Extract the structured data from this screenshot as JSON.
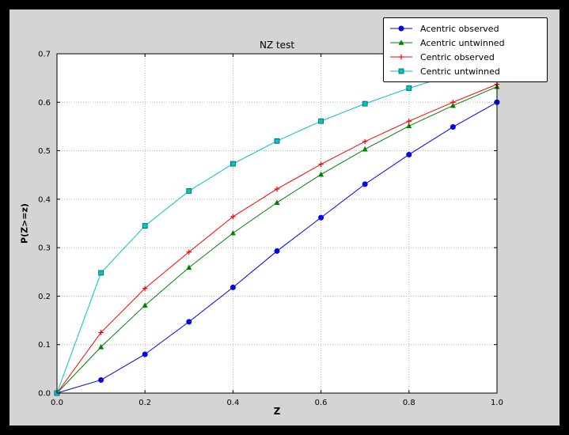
{
  "chart_data": {
    "type": "line",
    "title": "NZ test",
    "xlabel": "Z",
    "ylabel": "P(Z>=z)",
    "xlim": [
      0.0,
      1.0
    ],
    "ylim": [
      0.0,
      0.7
    ],
    "xticks": [
      0.0,
      0.2,
      0.4,
      0.6,
      0.8,
      1.0
    ],
    "yticks": [
      0.0,
      0.1,
      0.2,
      0.3,
      0.4,
      0.5,
      0.6,
      0.7
    ],
    "grid": true,
    "legend_position": "upper right",
    "x": [
      0.0,
      0.1,
      0.2,
      0.3,
      0.4,
      0.5,
      0.6,
      0.7,
      0.8,
      0.9,
      1.0
    ],
    "series": [
      {
        "name": "Acentric observed",
        "color": "#0000ee",
        "marker": "circle",
        "values": [
          0.0,
          0.027,
          0.08,
          0.147,
          0.218,
          0.293,
          0.362,
          0.431,
          0.492,
          0.549,
          0.6
        ]
      },
      {
        "name": "Acentric untwinned",
        "color": "#007f00",
        "marker": "triangle",
        "values": [
          0.0,
          0.095,
          0.181,
          0.259,
          0.33,
          0.393,
          0.451,
          0.503,
          0.551,
          0.593,
          0.632
        ]
      },
      {
        "name": "Centric observed",
        "color": "#ff0000",
        "marker": "plus",
        "values": [
          0.0,
          0.125,
          0.216,
          0.291,
          0.364,
          0.421,
          0.472,
          0.519,
          0.561,
          0.6,
          0.637
        ]
      },
      {
        "name": "Centric untwinned",
        "color": "#00c3c3",
        "marker": "square",
        "marker_edge": "#006060",
        "values": [
          0.0,
          0.248,
          0.345,
          0.417,
          0.473,
          0.52,
          0.561,
          0.597,
          0.629,
          0.657,
          0.683
        ]
      }
    ]
  }
}
